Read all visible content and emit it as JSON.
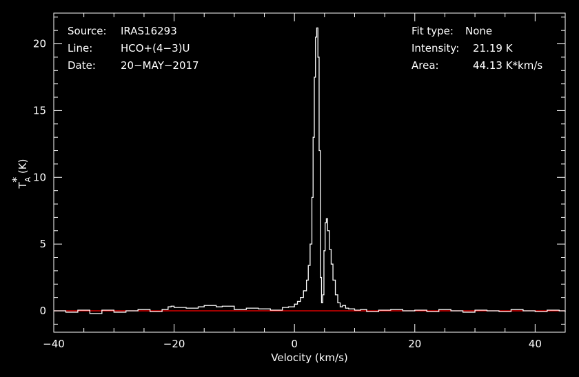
{
  "chart_data": {
    "type": "line",
    "xlabel": "Velocity (km/s)",
    "ylabel": "T_A* (K)",
    "ylabel_main": "T",
    "ylabel_sub": "A",
    "ylabel_sup": "*",
    "ylabel_unit": " (K)",
    "xlim": [
      -40,
      45
    ],
    "ylim": [
      -1.6,
      22.3
    ],
    "xticks": [
      {
        "value": -40,
        "label": "−40"
      },
      {
        "value": -20,
        "label": "−20"
      },
      {
        "value": 0,
        "label": "0"
      },
      {
        "value": 20,
        "label": "20"
      },
      {
        "value": 40,
        "label": "40"
      }
    ],
    "yticks": [
      {
        "value": 0,
        "label": "0"
      },
      {
        "value": 5,
        "label": "5"
      },
      {
        "value": 10,
        "label": "10"
      },
      {
        "value": 15,
        "label": "15"
      },
      {
        "value": 20,
        "label": "20"
      }
    ],
    "baseline": {
      "value": 0,
      "color": "#ff0000"
    },
    "series": [
      {
        "color": "#ffffff",
        "x": [
          -40,
          -38,
          -36,
          -34,
          -32,
          -30,
          -28,
          -26,
          -24,
          -22,
          -21,
          -20.5,
          -20,
          -18,
          -16,
          -15,
          -14,
          -13,
          -12,
          -10,
          -8,
          -6,
          -4,
          -2,
          -1,
          0,
          0.5,
          1,
          1.5,
          2,
          2.3,
          2.6,
          2.9,
          3.1,
          3.3,
          3.5,
          3.7,
          3.9,
          4.1,
          4.3,
          4.5,
          4.7,
          4.9,
          5.1,
          5.3,
          5.5,
          5.8,
          6.1,
          6.4,
          6.8,
          7.2,
          7.6,
          8,
          8.5,
          9,
          10,
          11,
          12,
          14,
          16,
          18,
          20,
          22,
          24,
          26,
          28,
          30,
          32,
          34,
          36,
          38,
          40,
          42,
          44,
          45
        ],
        "y": [
          0,
          -0.1,
          0.05,
          -0.2,
          0.05,
          -0.1,
          0,
          0.1,
          -0.05,
          0.1,
          0.3,
          0.35,
          0.25,
          0.2,
          0.3,
          0.4,
          0.4,
          0.3,
          0.35,
          0.1,
          0.2,
          0.15,
          0.05,
          0.25,
          0.3,
          0.5,
          0.7,
          1.0,
          1.5,
          2.3,
          3.4,
          5.0,
          8.5,
          13.0,
          17.5,
          20.5,
          21.19,
          19.0,
          12.0,
          2.5,
          0.6,
          1.2,
          4.5,
          6.6,
          6.9,
          6.0,
          4.6,
          3.5,
          2.3,
          1.2,
          0.6,
          0.3,
          0.4,
          0.2,
          0.15,
          0.05,
          0.1,
          -0.05,
          0.05,
          0.1,
          0,
          0.05,
          -0.05,
          0.1,
          0,
          -0.1,
          0.05,
          0,
          -0.05,
          0.1,
          0,
          -0.05,
          0.05,
          0,
          -0.1
        ]
      }
    ]
  },
  "info": {
    "source_label": "Source:",
    "source_value": "IRAS16293",
    "line_label": "Line:",
    "line_value": "HCO+(4−3)U",
    "date_label": "Date:",
    "date_value": "20−MAY−2017",
    "fit_label": "Fit type:",
    "fit_value": "None",
    "intensity_label": "Intensity:",
    "intensity_value": "21.19 K",
    "area_label": "Area:",
    "area_value": "44.13 K*km/s"
  }
}
